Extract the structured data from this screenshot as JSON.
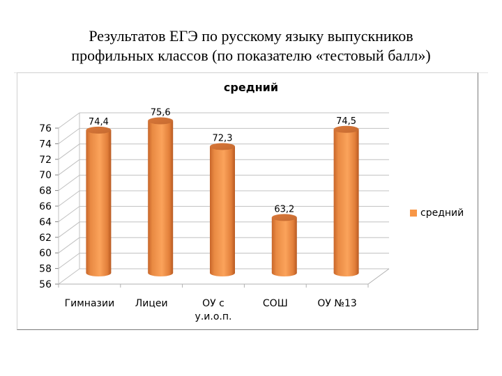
{
  "slide": {
    "title_line1": "Результатов ЕГЭ по русскому языку выпускников",
    "title_line2": "профильных классов (по показателю «тестовый балл»)"
  },
  "chart_data": {
    "type": "bar",
    "style": "3d-cylinder",
    "title": "средний",
    "xlabel": "",
    "ylabel": "",
    "categories": [
      "Гимназии",
      "Лицеи",
      "ОУ с у.и.о.п.",
      "СОШ",
      "ОУ №13"
    ],
    "category_lines": [
      [
        "Гимназии"
      ],
      [
        "Лицеи"
      ],
      [
        "ОУ с",
        "у.и.о.п."
      ],
      [
        "СОШ"
      ],
      [
        "ОУ №13"
      ]
    ],
    "series": [
      {
        "name": "средний",
        "values": [
          74.4,
          75.6,
          72.3,
          63.2,
          74.5
        ],
        "color": "#f79646"
      }
    ],
    "data_labels": [
      "74,4",
      "75,6",
      "72,3",
      "63,2",
      "74,5"
    ],
    "yticks": [
      56,
      58,
      60,
      62,
      64,
      66,
      68,
      70,
      72,
      74,
      76
    ],
    "ylim": [
      56,
      76
    ],
    "grid": true,
    "legend_position": "right"
  },
  "legend": {
    "label": "средний"
  }
}
